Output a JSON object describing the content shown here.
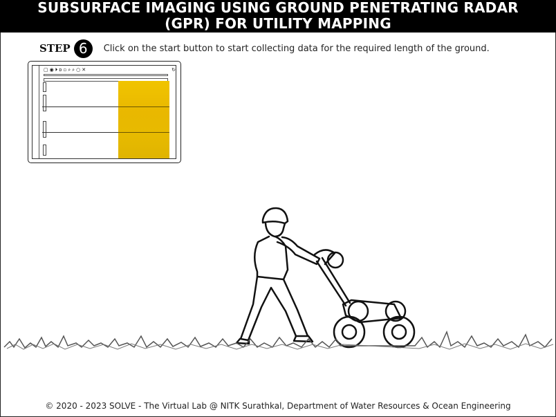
{
  "header": {
    "title_line1": "SUBSURFACE IMAGING USING GROUND PENETRATING RADAR",
    "title_line2": "(GPR) FOR UTILITY MAPPING"
  },
  "step": {
    "label": "STEP",
    "number": "6",
    "instruction": "Click on the start button to start collecting data for the required length of the ground."
  },
  "footer": {
    "text": "© 2020 - 2023 SOLVE - The Virtual Lab @ NITK Surathkal, Department of Water Resources & Ocean Engineering"
  },
  "colors": {
    "radargram": "#e9b800",
    "header_bg": "#000000"
  },
  "icons": [
    "open-icon",
    "stop-icon",
    "pause-icon",
    "play-icon",
    "zoom-in-icon",
    "zoom-out-icon",
    "refresh-icon",
    "close-icon"
  ]
}
